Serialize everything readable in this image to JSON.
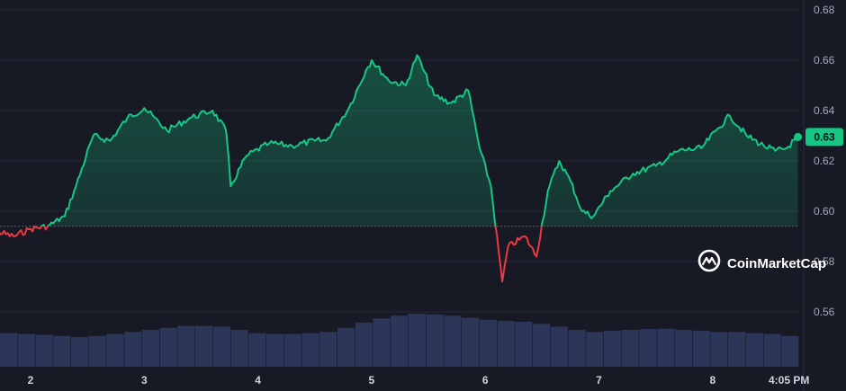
{
  "chart_data": {
    "type": "line",
    "y_ticks": [
      "0.68",
      "0.66",
      "0.64",
      "0.62",
      "0.60",
      "0.58",
      "0.56"
    ],
    "x_ticks": [
      "2",
      "3",
      "4",
      "5",
      "6",
      "7",
      "8",
      "4:05 PM"
    ],
    "ylim": [
      0.546,
      0.682
    ],
    "baseline": 0.594,
    "current_price_label": "0.63",
    "current_price": 0.6295,
    "grid": true,
    "colors": {
      "background": "#171924",
      "up": "#16c784",
      "down": "#ea3943",
      "grid": "#252836",
      "volume": "#2b3659"
    },
    "series": [
      {
        "x": [
          1.5,
          1.7,
          1.85,
          2.0,
          2.15,
          2.3,
          2.4,
          2.55,
          2.7,
          2.85,
          3.0,
          3.2,
          3.4,
          3.6,
          3.72,
          3.76,
          3.9,
          4.1,
          4.3,
          4.5,
          4.6,
          4.8,
          4.95,
          5.0,
          5.15,
          5.3,
          5.4,
          5.55,
          5.7,
          5.85,
          5.95,
          6.05,
          6.12,
          6.15,
          6.2,
          6.35,
          6.45,
          6.55,
          6.65,
          6.75,
          6.85,
          6.95,
          7.1,
          7.3,
          7.5,
          7.7,
          7.9,
          8.05,
          8.15,
          8.3,
          8.45,
          8.55,
          8.65,
          8.75
        ],
        "y": [
          0.591,
          0.592,
          0.59,
          0.593,
          0.594,
          0.598,
          0.61,
          0.63,
          0.628,
          0.637,
          0.641,
          0.632,
          0.637,
          0.64,
          0.632,
          0.61,
          0.622,
          0.627,
          0.626,
          0.628,
          0.628,
          0.641,
          0.656,
          0.66,
          0.652,
          0.65,
          0.662,
          0.646,
          0.643,
          0.648,
          0.625,
          0.61,
          0.583,
          0.572,
          0.586,
          0.59,
          0.582,
          0.608,
          0.62,
          0.612,
          0.6,
          0.598,
          0.608,
          0.615,
          0.618,
          0.624,
          0.625,
          0.633,
          0.638,
          0.63,
          0.626,
          0.624,
          0.625,
          0.6295
        ]
      }
    ],
    "volume": [
      0.52,
      0.5,
      0.48,
      0.45,
      0.42,
      0.45,
      0.5,
      0.55,
      0.6,
      0.65,
      0.7,
      0.7,
      0.68,
      0.6,
      0.52,
      0.5,
      0.5,
      0.52,
      0.55,
      0.65,
      0.78,
      0.88,
      0.95,
      1.0,
      0.98,
      0.95,
      0.9,
      0.85,
      0.82,
      0.8,
      0.75,
      0.68,
      0.6,
      0.55,
      0.58,
      0.6,
      0.62,
      0.63,
      0.6,
      0.58,
      0.55,
      0.55,
      0.52,
      0.5,
      0.45
    ]
  },
  "watermark": {
    "text": "CoinMarketCap",
    "icon": "coinmarketcap-logo-icon"
  }
}
